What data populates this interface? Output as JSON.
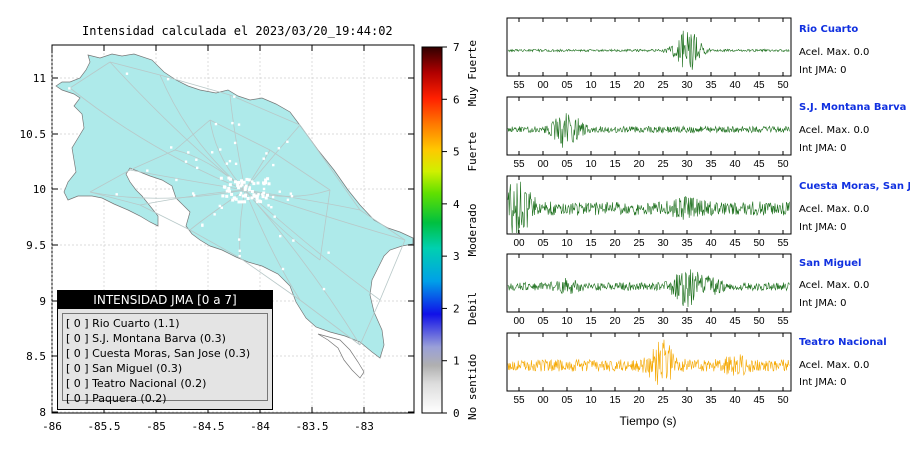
{
  "map": {
    "title": "Intensidad calculada el 2023/03/20_19:44:02",
    "x_ticks": [
      "-86",
      "-85.5",
      "-85",
      "-84.5",
      "-84",
      "-83.5",
      "-83"
    ],
    "y_ticks": [
      "11",
      "10.5",
      "10",
      "9.5",
      "9",
      "8.5",
      "8"
    ],
    "land_color": "#aeeaea"
  },
  "colorbar": {
    "ticks": [
      "0",
      "1",
      "2",
      "3",
      "4",
      "5",
      "6",
      "7"
    ],
    "categories": [
      "No sentido",
      "Debil",
      "Moderado",
      "Fuerte",
      "Muy Fuerte"
    ]
  },
  "legend": {
    "title": "INTENSIDAD JMA [0 a 7]",
    "items": [
      "[ 0 ]  Rio Cuarto (1.1)",
      "[ 0 ]  S.J. Montana Barva (0.3)",
      "[ 0 ]  Cuesta Moras, San Jose (0.3)",
      "[ 0 ]  San Miguel (0.3)",
      "[ 0 ]  Teatro Nacional (0.2)",
      "[ 0 ]  Paquera (0.2)"
    ]
  },
  "waveforms": {
    "xlabel": "Tiempo (s)",
    "panels": [
      {
        "station": "Rio Cuarto",
        "acel": "Acel. Max. 0.0",
        "jma": "Int JMA: 0",
        "color": "#1a6e1a",
        "ticks": [
          "55",
          "00",
          "05",
          "10",
          "15",
          "20",
          "25",
          "30",
          "35",
          "40",
          "45",
          "50"
        ]
      },
      {
        "station": "S.J. Montana Barva",
        "acel": "Acel. Max. 0.0",
        "jma": "Int JMA: 0",
        "color": "#1a6e1a",
        "ticks": [
          "55",
          "00",
          "05",
          "10",
          "15",
          "20",
          "25",
          "30",
          "35",
          "40",
          "45",
          "50"
        ]
      },
      {
        "station": "Cuesta Moras, San Jose",
        "acel": "Acel. Max. 0.0",
        "jma": "Int JMA: 0",
        "color": "#1a6e1a",
        "ticks": [
          "00",
          "05",
          "10",
          "15",
          "20",
          "25",
          "30",
          "35",
          "40",
          "45",
          "50",
          "55"
        ]
      },
      {
        "station": "San Miguel",
        "acel": "Acel. Max. 0.0",
        "jma": "Int JMA: 0",
        "color": "#1a6e1a",
        "ticks": [
          "00",
          "05",
          "10",
          "15",
          "20",
          "25",
          "30",
          "35",
          "40",
          "45",
          "50",
          "55"
        ]
      },
      {
        "station": "Teatro Nacional",
        "acel": "Acel. Max. 0.0",
        "jma": "Int JMA: 0",
        "color": "#f5a800",
        "ticks": [
          "55",
          "00",
          "05",
          "10",
          "15",
          "20",
          "25",
          "30",
          "35",
          "40",
          "45",
          "50"
        ]
      }
    ]
  },
  "chart_data": [
    {
      "type": "scatter",
      "title": "Intensidad calculada el 2023/03/20_19:44:02",
      "xlim": [
        -86,
        -82.55
      ],
      "ylim": [
        8,
        11.3
      ],
      "legend_title": "INTENSIDAD JMA [0 a 7]",
      "stations": [
        {
          "name": "Rio Cuarto",
          "jma_class": 0,
          "value": 1.1
        },
        {
          "name": "S.J. Montana Barva",
          "jma_class": 0,
          "value": 0.3
        },
        {
          "name": "Cuesta Moras, San Jose",
          "jma_class": 0,
          "value": 0.3
        },
        {
          "name": "San Miguel",
          "jma_class": 0,
          "value": 0.3
        },
        {
          "name": "Teatro Nacional",
          "jma_class": 0,
          "value": 0.2
        },
        {
          "name": "Paquera",
          "jma_class": 0,
          "value": 0.2
        }
      ],
      "colorbar": {
        "range": [
          0,
          7
        ],
        "labels": [
          "No sentido",
          "Debil",
          "Moderado",
          "Fuerte",
          "Muy Fuerte"
        ]
      }
    },
    {
      "type": "line",
      "xlabel": "Tiempo (s)",
      "series": [
        {
          "name": "Rio Cuarto",
          "peak_tick": "30",
          "acel_max": 0.0,
          "int_jma": 0
        },
        {
          "name": "S.J. Montana Barva",
          "peak_tick": "05",
          "acel_max": 0.0,
          "int_jma": 0
        },
        {
          "name": "Cuesta Moras, San Jose",
          "peak_tick": "00",
          "acel_max": 0.0,
          "int_jma": 0
        },
        {
          "name": "San Miguel",
          "peak_tick": "35",
          "acel_max": 0.0,
          "int_jma": 0
        },
        {
          "name": "Teatro Nacional",
          "peak_tick": "25",
          "acel_max": 0.0,
          "int_jma": 0
        }
      ]
    }
  ]
}
